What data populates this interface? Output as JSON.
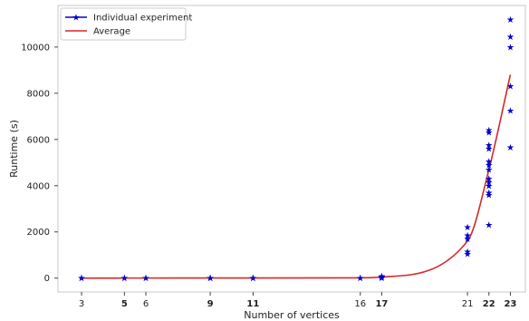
{
  "chart_data": {
    "type": "scatter",
    "xlabel": "Number of vertices",
    "ylabel": "Runtime (s)",
    "x_ticks": [
      3,
      5,
      6,
      9,
      11,
      16,
      17,
      21,
      22,
      23
    ],
    "x_ticks_bold": [
      5,
      9,
      11,
      17,
      22,
      23
    ],
    "x_tick_labels": [
      "3",
      "5",
      "6",
      "9",
      "11",
      "16",
      "17",
      "21",
      "22",
      "23"
    ],
    "xlim": [
      1.9,
      23.7
    ],
    "y_ticks": [
      0,
      2000,
      4000,
      6000,
      8000,
      10000
    ],
    "y_tick_labels": [
      "0",
      "2000",
      "4000",
      "6000",
      "8000",
      "10000"
    ],
    "ylim": [
      -600,
      11800
    ],
    "grid": false,
    "legend_position": "top-left",
    "series": [
      {
        "name": "Individual experiment",
        "color": "#0000cc",
        "marker": "star",
        "points": [
          [
            3,
            0
          ],
          [
            3,
            5
          ],
          [
            5,
            0
          ],
          [
            5,
            5
          ],
          [
            6,
            0
          ],
          [
            6,
            5
          ],
          [
            9,
            0
          ],
          [
            9,
            5
          ],
          [
            9,
            10
          ],
          [
            11,
            0
          ],
          [
            11,
            5
          ],
          [
            11,
            10
          ],
          [
            16,
            0
          ],
          [
            16,
            10
          ],
          [
            17,
            10
          ],
          [
            17,
            30
          ],
          [
            17,
            60
          ],
          [
            17,
            80
          ],
          [
            21,
            1050
          ],
          [
            21,
            1150
          ],
          [
            21,
            1700
          ],
          [
            21,
            1850
          ],
          [
            21,
            2200
          ],
          [
            22,
            2300
          ],
          [
            22,
            3600
          ],
          [
            22,
            3700
          ],
          [
            22,
            4000
          ],
          [
            22,
            4150
          ],
          [
            22,
            4300
          ],
          [
            22,
            4700
          ],
          [
            22,
            4900
          ],
          [
            22,
            5050
          ],
          [
            22,
            5600
          ],
          [
            22,
            5750
          ],
          [
            22,
            6300
          ],
          [
            22,
            6400
          ],
          [
            23,
            5650
          ],
          [
            23,
            7250
          ],
          [
            23,
            8300
          ],
          [
            23,
            10000
          ],
          [
            23,
            10450
          ],
          [
            23,
            11200
          ]
        ]
      },
      {
        "name": "Average",
        "color": "#d62728",
        "type": "line",
        "points": [
          [
            3,
            2
          ],
          [
            5,
            3
          ],
          [
            6,
            3
          ],
          [
            9,
            5
          ],
          [
            11,
            5
          ],
          [
            16,
            10
          ],
          [
            17,
            45
          ],
          [
            21,
            1600
          ],
          [
            22,
            4700
          ],
          [
            23,
            8800
          ]
        ]
      }
    ]
  }
}
